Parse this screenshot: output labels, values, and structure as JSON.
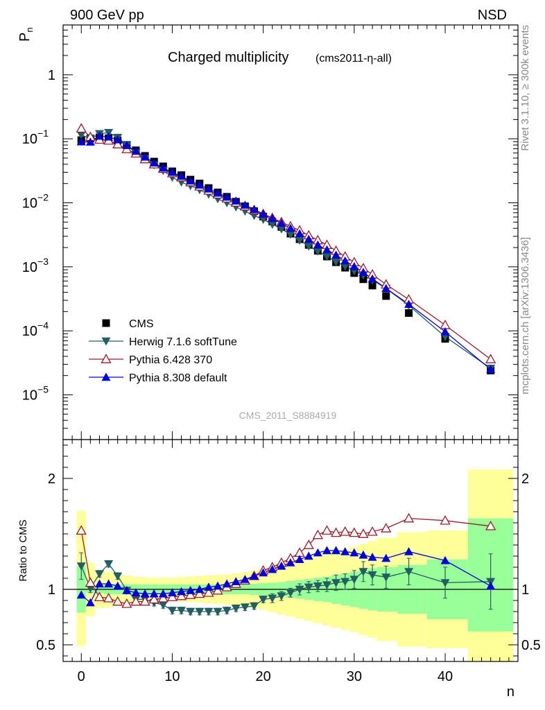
{
  "header": {
    "energy_label": "900 GeV pp",
    "process_label": "NSD"
  },
  "side_text": {
    "rivet": "Rivet 3.1.10, ≥ 300k events",
    "source": "mcplots.cern.ch [arXiv:1306.3436]"
  },
  "chart_data": [
    {
      "type": "scatter",
      "title": "Charged multiplicity",
      "subtitle": "(cms2011-η-all)",
      "watermark": "CMS_2011_S8884919",
      "ylabel": "P",
      "ylabel_sub": "n",
      "yscale": "log",
      "xlim": [
        -2,
        48
      ],
      "ylim": [
        2e-06,
        6
      ],
      "y_ticks": [
        {
          "value": 1,
          "label": "1"
        },
        {
          "value": 0.1,
          "label": "10",
          "exp": "−1"
        },
        {
          "value": 0.01,
          "label": "10",
          "exp": "−2"
        },
        {
          "value": 0.001,
          "label": "10",
          "exp": "−3"
        },
        {
          "value": 0.0001,
          "label": "10",
          "exp": "−4"
        },
        {
          "value": 1e-05,
          "label": "10",
          "exp": "−5"
        }
      ],
      "legend_position": "bottom-left",
      "x": [
        0,
        1,
        2,
        3,
        4,
        5,
        6,
        7,
        8,
        9,
        10,
        11,
        12,
        13,
        14,
        15,
        16,
        17,
        18,
        19,
        20,
        21,
        22,
        23,
        24,
        25,
        26,
        27,
        28,
        29,
        30,
        31,
        32,
        33.5,
        36,
        40,
        45
      ],
      "series": [
        {
          "name": "CMS",
          "color": "#000000",
          "marker": "square",
          "values": [
            0.095,
            0.101,
            0.105,
            0.102,
            0.094,
            0.08,
            0.066,
            0.054,
            0.044,
            0.037,
            0.031,
            0.027,
            0.023,
            0.02,
            0.017,
            0.0145,
            0.0124,
            0.0104,
            0.0088,
            0.0074,
            0.0061,
            0.0051,
            0.0042,
            0.0033,
            0.0027,
            0.0022,
            0.00178,
            0.00145,
            0.00118,
            0.00097,
            0.0008,
            0.00064,
            0.00051,
            0.00035,
            0.00019,
            7.5e-05,
            2.4e-05
          ]
        },
        {
          "name": "Herwig 7.1.6 softTune",
          "color": "#225e62",
          "marker": "triangle-down",
          "values": [
            0.115,
            0.1,
            0.12,
            0.125,
            0.105,
            0.079,
            0.06,
            0.049,
            0.039,
            0.032,
            0.025,
            0.021,
            0.0185,
            0.016,
            0.0136,
            0.0115,
            0.01,
            0.0086,
            0.0074,
            0.0063,
            0.0055,
            0.0046,
            0.0039,
            0.0032,
            0.0026,
            0.0021,
            0.00175,
            0.00145,
            0.0012,
            0.00102,
            0.00086,
            0.00074,
            0.00062,
            0.00046,
            0.00025,
            8.1e-05,
            2.6e-05
          ]
        },
        {
          "name": "Pythia 6.428 370",
          "color": "#9a1a2a",
          "marker": "triangle-up-open",
          "values": [
            0.145,
            0.107,
            0.097,
            0.094,
            0.082,
            0.069,
            0.059,
            0.048,
            0.04,
            0.034,
            0.029,
            0.025,
            0.021,
            0.018,
            0.0155,
            0.0135,
            0.0117,
            0.0101,
            0.0088,
            0.0077,
            0.0067,
            0.0058,
            0.005,
            0.0043,
            0.0037,
            0.0031,
            0.0026,
            0.0022,
            0.00178,
            0.00145,
            0.00118,
            0.00095,
            0.00076,
            0.00053,
            0.00031,
            0.000123,
            3.6e-05
          ]
        },
        {
          "name": "Pythia 8.308 default",
          "color": "#0000dd",
          "marker": "triangle-up",
          "values": [
            0.09,
            0.089,
            0.11,
            0.107,
            0.097,
            0.079,
            0.064,
            0.052,
            0.042,
            0.035,
            0.03,
            0.026,
            0.022,
            0.019,
            0.0165,
            0.0142,
            0.0123,
            0.0107,
            0.0092,
            0.0079,
            0.0067,
            0.0057,
            0.0048,
            0.004,
            0.0033,
            0.0027,
            0.0022,
            0.00185,
            0.00153,
            0.00124,
            0.00101,
            0.00082,
            0.00065,
            0.00046,
            0.00026,
            9.7e-05,
            2.5e-05
          ]
        }
      ]
    },
    {
      "type": "line",
      "ylabel": "Ratio to CMS",
      "xlabel": "n",
      "xlim": [
        -2,
        48
      ],
      "ylim": [
        0.35,
        2.35
      ],
      "reference_line": 1,
      "x_ticks": [
        0,
        10,
        20,
        30,
        40
      ],
      "y_ticks": [
        0.5,
        1,
        2
      ],
      "x": [
        0,
        1,
        2,
        3,
        4,
        5,
        6,
        7,
        8,
        9,
        10,
        11,
        12,
        13,
        14,
        15,
        16,
        17,
        18,
        19,
        20,
        21,
        22,
        23,
        24,
        25,
        26,
        27,
        28,
        29,
        30,
        31,
        32,
        33.5,
        36,
        40,
        45
      ],
      "bands": [
        {
          "name": "stat",
          "color": "#99ff99",
          "edges": [
            -0.5,
            0.5,
            1.5,
            2.5,
            3.5,
            4.5,
            5.5,
            6.5,
            7.5,
            8.5,
            9.5,
            10.5,
            11.5,
            12.5,
            13.5,
            14.5,
            15.5,
            16.5,
            17.5,
            18.5,
            19.5,
            20.5,
            21.5,
            22.5,
            23.5,
            24.5,
            25.5,
            26.5,
            27.5,
            28.5,
            29.5,
            30.5,
            31.5,
            32.5,
            34.75,
            38,
            42.5,
            47.5
          ],
          "lower": [
            0.79,
            0.97,
            0.965,
            0.955,
            0.955,
            0.955,
            0.955,
            0.955,
            0.955,
            0.955,
            0.955,
            0.955,
            0.955,
            0.955,
            0.955,
            0.955,
            0.955,
            0.955,
            0.955,
            0.95,
            0.945,
            0.94,
            0.935,
            0.925,
            0.915,
            0.905,
            0.895,
            0.885,
            0.87,
            0.855,
            0.84,
            0.825,
            0.81,
            0.8,
            0.78,
            0.73,
            0.62
          ],
          "upper": [
            1.21,
            1.03,
            1.035,
            1.045,
            1.045,
            1.045,
            1.045,
            1.045,
            1.045,
            1.045,
            1.045,
            1.045,
            1.045,
            1.045,
            1.045,
            1.045,
            1.045,
            1.045,
            1.045,
            1.05,
            1.055,
            1.06,
            1.065,
            1.075,
            1.085,
            1.095,
            1.105,
            1.115,
            1.13,
            1.145,
            1.16,
            1.175,
            1.19,
            1.2,
            1.22,
            1.27,
            1.64
          ]
        },
        {
          "name": "total",
          "color": "#ffff99",
          "edges": [
            -0.5,
            0.5,
            1.5,
            2.5,
            3.5,
            4.5,
            5.5,
            6.5,
            7.5,
            8.5,
            9.5,
            10.5,
            11.5,
            12.5,
            13.5,
            14.5,
            15.5,
            16.5,
            17.5,
            18.5,
            19.5,
            20.5,
            21.5,
            22.5,
            23.5,
            24.5,
            25.5,
            26.5,
            27.5,
            28.5,
            29.5,
            30.5,
            31.5,
            32.5,
            34.75,
            38,
            42.5,
            47.5
          ],
          "lower": [
            0.49,
            0.76,
            0.83,
            0.84,
            0.86,
            0.875,
            0.885,
            0.89,
            0.895,
            0.895,
            0.895,
            0.89,
            0.885,
            0.88,
            0.875,
            0.87,
            0.865,
            0.855,
            0.845,
            0.83,
            0.815,
            0.795,
            0.775,
            0.755,
            0.735,
            0.715,
            0.695,
            0.675,
            0.655,
            0.635,
            0.615,
            0.59,
            0.565,
            0.535,
            0.485,
            0.47,
            0.32
          ],
          "upper": [
            1.71,
            1.24,
            1.17,
            1.16,
            1.14,
            1.125,
            1.115,
            1.11,
            1.105,
            1.105,
            1.105,
            1.11,
            1.115,
            1.12,
            1.125,
            1.13,
            1.135,
            1.145,
            1.155,
            1.17,
            1.185,
            1.205,
            1.225,
            1.245,
            1.265,
            1.285,
            1.305,
            1.325,
            1.345,
            1.365,
            1.385,
            1.41,
            1.435,
            1.465,
            1.515,
            1.53,
            2.08
          ]
        }
      ],
      "series": [
        {
          "name": "Herwig 7.1.6 softTune",
          "color": "#225e62",
          "marker": "triangle-down",
          "values": [
            1.21,
            1.01,
            1.14,
            1.23,
            1.12,
            0.99,
            0.91,
            0.91,
            0.88,
            0.86,
            0.81,
            0.81,
            0.8,
            0.8,
            0.8,
            0.8,
            0.81,
            0.83,
            0.84,
            0.85,
            0.91,
            0.92,
            0.94,
            0.97,
            1.0,
            1.02,
            1.03,
            1.04,
            1.06,
            1.07,
            1.09,
            1.16,
            1.13,
            1.11,
            1.16,
            1.06,
            1.07
          ],
          "errors": [
            0.12,
            0.04,
            0.03,
            0.03,
            0.03,
            0.03,
            0.03,
            0.03,
            0.03,
            0.03,
            0.03,
            0.03,
            0.03,
            0.03,
            0.03,
            0.03,
            0.03,
            0.03,
            0.03,
            0.03,
            0.03,
            0.04,
            0.04,
            0.04,
            0.05,
            0.05,
            0.05,
            0.06,
            0.07,
            0.07,
            0.08,
            0.09,
            0.09,
            0.1,
            0.12,
            0.14,
            0.25
          ]
        },
        {
          "name": "Pythia 6.428 370",
          "color": "#9a1a2a",
          "marker": "triangle-up-open",
          "values": [
            1.53,
            1.06,
            0.93,
            0.92,
            0.89,
            0.87,
            0.89,
            0.89,
            0.91,
            0.92,
            0.93,
            0.94,
            0.95,
            0.96,
            0.97,
            0.99,
            1.02,
            1.05,
            1.08,
            1.12,
            1.17,
            1.2,
            1.24,
            1.28,
            1.33,
            1.4,
            1.49,
            1.53,
            1.51,
            1.52,
            1.51,
            1.5,
            1.52,
            1.55,
            1.64,
            1.62,
            1.57
          ]
        },
        {
          "name": "Pythia 8.308 default",
          "color": "#0000dd",
          "marker": "triangle-up",
          "values": [
            0.95,
            0.88,
            1.05,
            1.05,
            1.03,
            0.99,
            0.97,
            0.96,
            0.96,
            0.96,
            0.97,
            0.98,
            0.99,
            1.0,
            1.02,
            1.03,
            1.05,
            1.07,
            1.09,
            1.12,
            1.15,
            1.18,
            1.21,
            1.24,
            1.27,
            1.3,
            1.33,
            1.35,
            1.35,
            1.34,
            1.33,
            1.31,
            1.29,
            1.28,
            1.34,
            1.26,
            1.03
          ]
        }
      ]
    }
  ]
}
